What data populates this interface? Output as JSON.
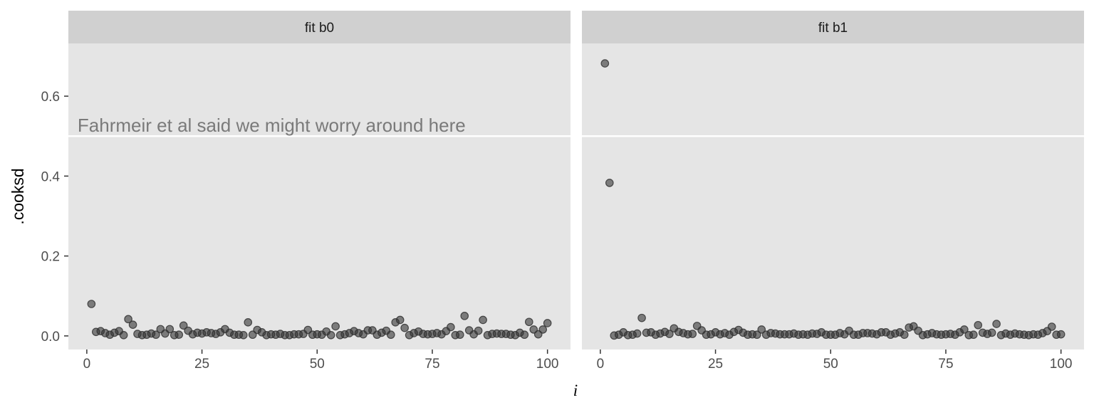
{
  "chart_data": {
    "type": "scatter",
    "xlabel": "i",
    "ylabel": ".cooksd",
    "xlim": [
      -4,
      105
    ],
    "ylim": [
      -0.034,
      0.732
    ],
    "x_ticks": [
      0,
      25,
      50,
      75,
      100
    ],
    "y_ticks": [
      0.0,
      0.2,
      0.4,
      0.6
    ],
    "x_tick_labels": [
      "0",
      "25",
      "50",
      "75",
      "100"
    ],
    "y_tick_labels": [
      "0.0",
      "0.2",
      "0.4",
      "0.6"
    ],
    "reference_line": 0.5,
    "annotation": {
      "panel": 0,
      "text": "Fahrmeir et al said we might worry around here",
      "x": -2,
      "y": 0.525
    },
    "colors": {
      "panel_background": "#e5e5e5",
      "strip_background": "#d0d0d0",
      "gridline": "#ffffff",
      "point_fill": "#333333",
      "point_alpha": 0.6
    },
    "facets": [
      {
        "label": "fit b0",
        "y": [
          0.08,
          0.01,
          0.012,
          0.007,
          0.003,
          0.008,
          0.012,
          0.002,
          0.042,
          0.028,
          0.005,
          0.002,
          0.003,
          0.006,
          0.003,
          0.017,
          0.006,
          0.017,
          0.002,
          0.003,
          0.026,
          0.013,
          0.004,
          0.008,
          0.006,
          0.009,
          0.007,
          0.005,
          0.009,
          0.017,
          0.008,
          0.003,
          0.003,
          0.002,
          0.034,
          0.003,
          0.015,
          0.009,
          0.002,
          0.004,
          0.003,
          0.005,
          0.002,
          0.002,
          0.004,
          0.004,
          0.005,
          0.015,
          0.003,
          0.004,
          0.003,
          0.011,
          0.002,
          0.024,
          0.002,
          0.004,
          0.007,
          0.012,
          0.007,
          0.004,
          0.014,
          0.014,
          0.003,
          0.008,
          0.013,
          0.003,
          0.034,
          0.04,
          0.02,
          0.002,
          0.007,
          0.011,
          0.005,
          0.004,
          0.005,
          0.007,
          0.004,
          0.012,
          0.022,
          0.002,
          0.003,
          0.05,
          0.014,
          0.004,
          0.013,
          0.04,
          0.002,
          0.005,
          0.006,
          0.005,
          0.005,
          0.003,
          0.002,
          0.008,
          0.003,
          0.035,
          0.016,
          0.004,
          0.016,
          0.032
        ]
      },
      {
        "label": "fit b1",
        "y": [
          0.682,
          0.383,
          0.001,
          0.003,
          0.009,
          0.002,
          0.003,
          0.006,
          0.045,
          0.008,
          0.009,
          0.003,
          0.006,
          0.01,
          0.005,
          0.019,
          0.01,
          0.007,
          0.004,
          0.005,
          0.025,
          0.014,
          0.003,
          0.004,
          0.009,
          0.004,
          0.007,
          0.003,
          0.01,
          0.015,
          0.008,
          0.003,
          0.004,
          0.003,
          0.016,
          0.003,
          0.007,
          0.006,
          0.004,
          0.004,
          0.004,
          0.006,
          0.003,
          0.004,
          0.003,
          0.006,
          0.005,
          0.009,
          0.003,
          0.003,
          0.003,
          0.007,
          0.004,
          0.013,
          0.003,
          0.003,
          0.007,
          0.007,
          0.006,
          0.004,
          0.009,
          0.009,
          0.003,
          0.006,
          0.009,
          0.003,
          0.021,
          0.024,
          0.013,
          0.002,
          0.004,
          0.007,
          0.004,
          0.003,
          0.004,
          0.005,
          0.003,
          0.009,
          0.016,
          0.002,
          0.003,
          0.027,
          0.008,
          0.005,
          0.008,
          0.03,
          0.002,
          0.006,
          0.003,
          0.006,
          0.004,
          0.003,
          0.002,
          0.004,
          0.003,
          0.007,
          0.012,
          0.023,
          0.003,
          0.004
        ]
      }
    ]
  }
}
